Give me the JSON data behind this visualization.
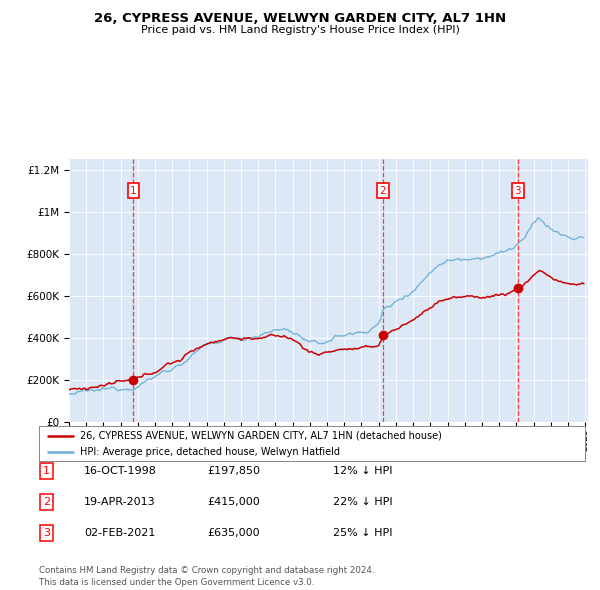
{
  "title1": "26, CYPRESS AVENUE, WELWYN GARDEN CITY, AL7 1HN",
  "title2": "Price paid vs. HM Land Registry's House Price Index (HPI)",
  "sale_dates": [
    "1998-10-16",
    "2013-04-19",
    "2021-02-02"
  ],
  "sale_prices": [
    197850,
    415000,
    635000
  ],
  "sale_labels": [
    "1",
    "2",
    "3"
  ],
  "legend_property": "26, CYPRESS AVENUE, WELWYN GARDEN CITY, AL7 1HN (detached house)",
  "legend_hpi": "HPI: Average price, detached house, Welwyn Hatfield",
  "table_data": [
    [
      "1",
      "16-OCT-1998",
      "£197,850",
      "12% ↓ HPI"
    ],
    [
      "2",
      "19-APR-2013",
      "£415,000",
      "22% ↓ HPI"
    ],
    [
      "3",
      "02-FEB-2021",
      "£635,000",
      "25% ↓ HPI"
    ]
  ],
  "footer": "Contains HM Land Registry data © Crown copyright and database right 2024.\nThis data is licensed under the Open Government Licence v3.0.",
  "hpi_color": "#6baed6",
  "price_color": "#cc0000",
  "plot_bg": "#dce8f5",
  "ylim": [
    0,
    1250000
  ],
  "yticks": [
    0,
    200000,
    400000,
    600000,
    800000,
    1000000,
    1200000
  ],
  "ytick_labels": [
    "£0",
    "£200K",
    "£400K",
    "£600K",
    "£800K",
    "£1M",
    "£1.2M"
  ]
}
